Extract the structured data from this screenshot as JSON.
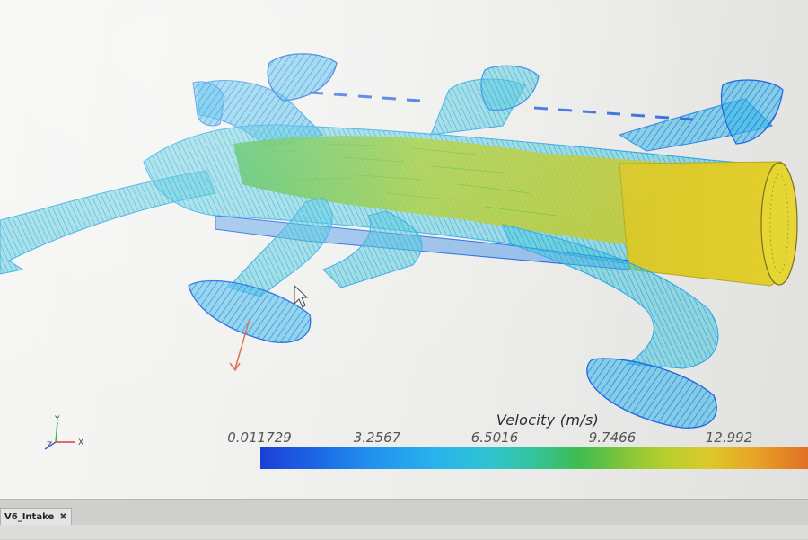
{
  "viewport": {
    "model": "V6 intake manifold velocity vectors"
  },
  "triad": {
    "x_label": "X",
    "y_label": "Y",
    "z_label": "Z"
  },
  "legend": {
    "title": "Velocity (m/s)",
    "ticks": [
      "0.011729",
      "3.2567",
      "6.5016",
      "9.7466",
      "12.992"
    ],
    "colors": {
      "min": "#1b3fd6",
      "low": "#29b3ec",
      "mid": "#3ebc52",
      "high": "#dcc92a",
      "max": "#e07022"
    }
  },
  "tabs": [
    {
      "label": "V6_Intake",
      "close_icon": "close-icon"
    }
  ],
  "colors": {
    "background": "#f2f2f0",
    "panel": "#cfcfcd"
  }
}
